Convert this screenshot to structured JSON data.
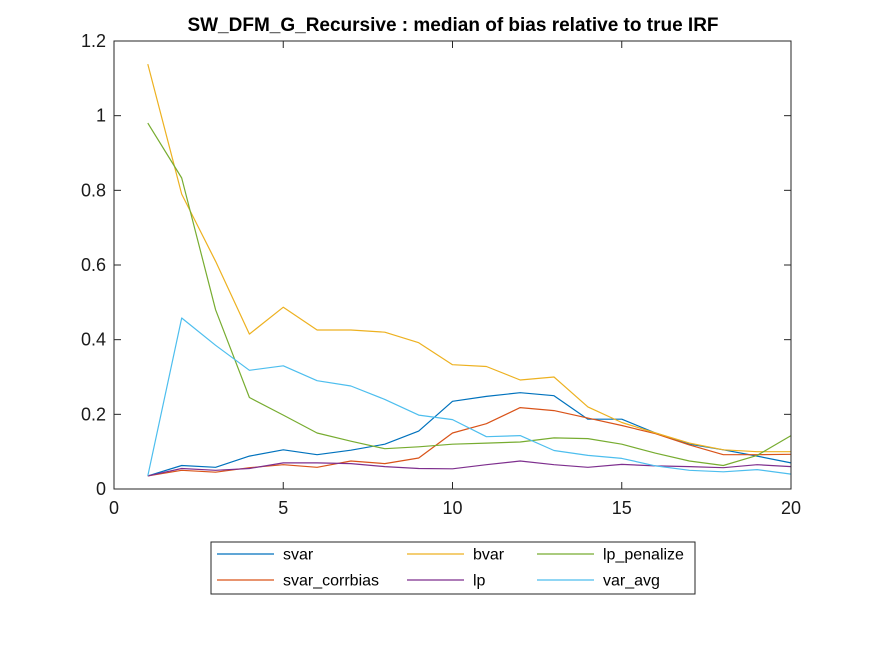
{
  "chart_data": {
    "type": "line",
    "title": "SW_DFM_G_Recursive : median of bias relative to true IRF",
    "xlabel": "",
    "ylabel": "",
    "xlim": [
      0,
      20
    ],
    "ylim": [
      0,
      1.2
    ],
    "xticks": [
      0,
      5,
      10,
      15,
      20
    ],
    "yticks": [
      0,
      0.2,
      0.4,
      0.6,
      0.8,
      1,
      1.2
    ],
    "xtick_labels": [
      "0",
      "5",
      "10",
      "15",
      "20"
    ],
    "ytick_labels": [
      "0",
      "0.2",
      "0.4",
      "0.6",
      "0.8",
      "1",
      "1.2"
    ],
    "grid": false,
    "legend_position": "bottom-outside",
    "x": [
      1,
      2,
      3,
      4,
      5,
      6,
      7,
      8,
      9,
      10,
      11,
      12,
      13,
      14,
      15,
      16,
      17,
      18,
      19,
      20
    ],
    "series": [
      {
        "name": "svar",
        "color": "#0072BD",
        "values": [
          0.035,
          0.063,
          0.058,
          0.088,
          0.105,
          0.092,
          0.104,
          0.12,
          0.155,
          0.235,
          0.248,
          0.258,
          0.25,
          0.187,
          0.187,
          0.15,
          0.12,
          0.105,
          0.088,
          0.07
        ]
      },
      {
        "name": "svar_corrbias",
        "color": "#D95319",
        "values": [
          0.035,
          0.05,
          0.045,
          0.057,
          0.065,
          0.058,
          0.075,
          0.068,
          0.083,
          0.15,
          0.175,
          0.218,
          0.21,
          0.19,
          0.17,
          0.148,
          0.118,
          0.092,
          0.092,
          0.093
        ]
      },
      {
        "name": "bvar",
        "color": "#EDB120",
        "values": [
          1.138,
          0.79,
          0.61,
          0.415,
          0.487,
          0.426,
          0.426,
          0.42,
          0.392,
          0.333,
          0.328,
          0.292,
          0.3,
          0.22,
          0.178,
          0.15,
          0.123,
          0.105,
          0.1,
          0.1
        ]
      },
      {
        "name": "lp",
        "color": "#7E2F8E",
        "values": [
          0.035,
          0.055,
          0.05,
          0.055,
          0.07,
          0.07,
          0.068,
          0.06,
          0.055,
          0.054,
          0.065,
          0.075,
          0.065,
          0.058,
          0.066,
          0.062,
          0.06,
          0.057,
          0.065,
          0.06
        ]
      },
      {
        "name": "lp_penalize",
        "color": "#77AC30",
        "values": [
          0.98,
          0.833,
          0.48,
          0.245,
          0.198,
          0.15,
          0.128,
          0.108,
          0.113,
          0.12,
          0.123,
          0.126,
          0.137,
          0.135,
          0.12,
          0.096,
          0.075,
          0.063,
          0.09,
          0.143
        ]
      },
      {
        "name": "var_avg",
        "color": "#4DBEEE",
        "values": [
          0.035,
          0.458,
          0.385,
          0.318,
          0.33,
          0.29,
          0.276,
          0.24,
          0.198,
          0.186,
          0.14,
          0.143,
          0.103,
          0.09,
          0.082,
          0.062,
          0.05,
          0.046,
          0.052,
          0.04
        ]
      }
    ],
    "legend_order": [
      "svar",
      "bvar",
      "lp_penalize",
      "svar_corrbias",
      "lp",
      "var_avg"
    ]
  }
}
